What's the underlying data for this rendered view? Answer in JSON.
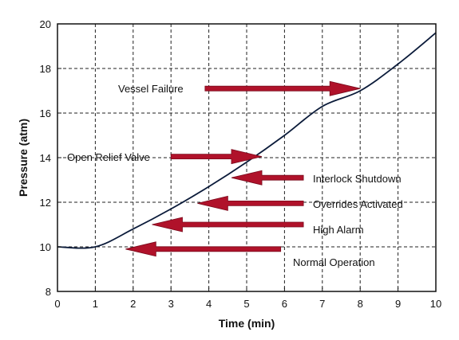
{
  "chart_data": {
    "type": "line",
    "title": "",
    "xlabel": "Time (min)",
    "ylabel": "Pressure (atm)",
    "xlim": [
      0,
      10
    ],
    "ylim": [
      8,
      20
    ],
    "x_ticks": [
      0,
      1,
      2,
      3,
      4,
      5,
      6,
      7,
      8,
      9,
      10
    ],
    "y_ticks": [
      8,
      10,
      12,
      14,
      16,
      18,
      20
    ],
    "grid": true,
    "grid_style": "dashed",
    "series": [
      {
        "x": [
          0,
          1,
          2,
          3,
          4,
          5,
          6,
          7,
          8,
          9,
          10
        ],
        "y": [
          10,
          10,
          10.8,
          11.7,
          12.7,
          13.8,
          15.0,
          16.3,
          17.0,
          18.2,
          19.6
        ],
        "color": "#0b1b3a"
      }
    ],
    "annotations": [
      {
        "text": "Vessel Failure",
        "arrow_from": [
          3.9,
          17.1
        ],
        "arrow_to": [
          8.0,
          17.1
        ],
        "direction": "right"
      },
      {
        "text": "Open Relief Valve",
        "arrow_from": [
          3.0,
          14.05
        ],
        "arrow_to": [
          5.4,
          14.05
        ],
        "direction": "right"
      },
      {
        "text": "Interlock Shutdown",
        "arrow_from": [
          6.5,
          13.1
        ],
        "arrow_to": [
          4.6,
          13.1
        ],
        "direction": "left"
      },
      {
        "text": "Overrides Activated",
        "arrow_from": [
          6.5,
          11.95
        ],
        "arrow_to": [
          3.7,
          11.95
        ],
        "direction": "left"
      },
      {
        "text": "High Alarm",
        "arrow_from": [
          6.5,
          11.0
        ],
        "arrow_to": [
          2.5,
          11.0
        ],
        "direction": "left"
      },
      {
        "text": "Normal Operation",
        "arrow_from": [
          5.9,
          9.9
        ],
        "arrow_to": [
          1.8,
          9.9
        ],
        "direction": "left"
      }
    ],
    "arrow_color": "#b0122a"
  }
}
